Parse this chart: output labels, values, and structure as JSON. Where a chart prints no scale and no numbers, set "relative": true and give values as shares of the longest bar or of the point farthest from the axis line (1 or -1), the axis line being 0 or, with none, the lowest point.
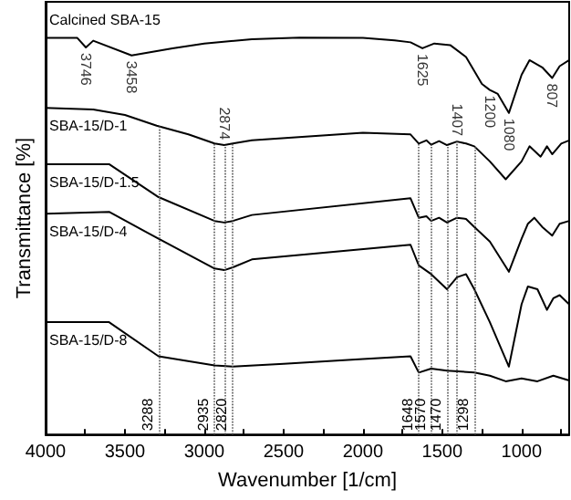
{
  "chart_data": {
    "type": "line",
    "relative": true,
    "xlabel": "Wavenumber [1/cm]",
    "ylabel": "Transmittance [%]",
    "xlim": [
      4000,
      700
    ],
    "xticks": [
      4000,
      {
        "value": 3750,
        "label": null
      },
      3500,
      {
        "value": 3250,
        "label": null
      },
      3000,
      {
        "value": 2750,
        "label": null
      },
      2500,
      {
        "value": 2250,
        "label": null
      },
      2000,
      {
        "value": 1750,
        "label": null
      },
      1500,
      {
        "value": 1250,
        "label": null
      },
      1000,
      {
        "value": 750,
        "label": null
      }
    ],
    "grid": false,
    "legend": false,
    "marker": "none",
    "line_style": "solid",
    "series": [
      {
        "name": "Calcined SBA-15",
        "color": "#000000",
        "x": [
          4000,
          3800,
          3746,
          3700,
          3458,
          3200,
          3000,
          2700,
          2400,
          2000,
          1800,
          1700,
          1625,
          1550,
          1450,
          1350,
          1250,
          1200,
          1150,
          1080,
          1000,
          950,
          870,
          807,
          760,
          700
        ],
        "values": [
          0.999,
          0.999,
          0.975,
          0.992,
          0.955,
          0.973,
          0.985,
          0.996,
          1,
          0.999,
          0.993,
          0.988,
          0.973,
          0.985,
          0.981,
          0.951,
          0.883,
          0.868,
          0.858,
          0.81,
          0.906,
          0.943,
          0.925,
          0.898,
          0.928,
          0.943
        ]
      },
      {
        "name": "SBA-15/D-1",
        "color": "#000000",
        "x": [
          4000,
          3700,
          3500,
          3300,
          3100,
          2935,
          2874,
          2820,
          2700,
          2000,
          1700,
          1648,
          1600,
          1570,
          1520,
          1470,
          1407,
          1350,
          1298,
          1200,
          1100,
          1000,
          950,
          880,
          840,
          807,
          750,
          700
        ],
        "values": [
          0.823,
          0.819,
          0.805,
          0.778,
          0.756,
          0.733,
          0.729,
          0.733,
          0.741,
          0.76,
          0.756,
          0.733,
          0.741,
          0.73,
          0.739,
          0.729,
          0.738,
          0.733,
          0.726,
          0.688,
          0.643,
          0.688,
          0.726,
          0.7,
          0.726,
          0.706,
          0.733,
          0.741
        ]
      },
      {
        "name": "SBA-15/D-1.5",
        "color": "#000000",
        "x": [
          4000,
          3600,
          3288,
          2935,
          2874,
          2820,
          2700,
          1700,
          1648,
          1600,
          1570,
          1520,
          1470,
          1407,
          1350,
          1298,
          1200,
          1080,
          1000,
          960,
          920,
          870,
          807,
          760,
          700
        ],
        "values": [
          0.681,
          0.681,
          0.598,
          0.538,
          0.534,
          0.538,
          0.553,
          0.595,
          0.546,
          0.55,
          0.538,
          0.546,
          0.534,
          0.546,
          0.543,
          0.523,
          0.486,
          0.41,
          0.493,
          0.531,
          0.546,
          0.523,
          0.501,
          0.531,
          0.538
        ]
      },
      {
        "name": "SBA-15/D-4",
        "color": "#000000",
        "x": [
          4000,
          3600,
          3288,
          2935,
          2874,
          2820,
          2700,
          1700,
          1648,
          1570,
          1470,
          1407,
          1350,
          1298,
          1200,
          1080,
          1000,
          960,
          900,
          840,
          800,
          760,
          700
        ],
        "values": [
          0.556,
          0.561,
          0.493,
          0.418,
          0.414,
          0.421,
          0.441,
          0.478,
          0.426,
          0.404,
          0.366,
          0.396,
          0.404,
          0.366,
          0.283,
          0.171,
          0.328,
          0.373,
          0.366,
          0.314,
          0.343,
          0.351,
          0.328
        ]
      },
      {
        "name": "SBA-15/D-8",
        "color": "#000000",
        "x": [
          4000,
          3600,
          3288,
          2935,
          2820,
          2500,
          2000,
          1700,
          1648,
          1570,
          1470,
          1298,
          1200,
          1100,
          1000,
          900,
          800,
          700
        ],
        "values": [
          0.283,
          0.283,
          0.197,
          0.174,
          0.171,
          0.178,
          0.19,
          0.197,
          0.156,
          0.166,
          0.161,
          0.156,
          0.148,
          0.134,
          0.141,
          0.134,
          0.148,
          0.136
        ]
      }
    ],
    "ref_lines": [
      {
        "axis": "x",
        "value": 3288,
        "label": "3288",
        "line_style": "dotted"
      },
      {
        "axis": "x",
        "value": 2935,
        "label": "2935",
        "line_style": "dotted"
      },
      {
        "axis": "x",
        "value": 2874,
        "label": null,
        "line_style": "dotted"
      },
      {
        "axis": "x",
        "value": 2820,
        "label": "2820",
        "line_style": "dotted"
      },
      {
        "axis": "x",
        "value": 1648,
        "label": "1648",
        "line_style": "dotted"
      },
      {
        "axis": "x",
        "value": 1570,
        "label": "1570",
        "line_style": "dotted"
      },
      {
        "axis": "x",
        "value": 1470,
        "label": "1470",
        "line_style": "dotted"
      },
      {
        "axis": "x",
        "value": 1407,
        "label": null,
        "line_style": "dotted"
      },
      {
        "axis": "x",
        "value": 1298,
        "label": "1298",
        "line_style": "dotted"
      }
    ],
    "annotations": [
      {
        "text": "3746",
        "x": 3746,
        "y": 0.975
      },
      {
        "text": "3458",
        "x": 3458,
        "y": 0.955
      },
      {
        "text": "1625",
        "x": 1625,
        "y": 0.973
      },
      {
        "text": "1200",
        "x": 1200,
        "y": 0.868
      },
      {
        "text": "1080",
        "x": 1080,
        "y": 0.81
      },
      {
        "text": "807",
        "x": 807,
        "y": 0.898
      },
      {
        "text": "2874",
        "x": 2874,
        "y": 0.729
      },
      {
        "text": "1407",
        "x": 1407,
        "y": 0.738
      }
    ]
  }
}
